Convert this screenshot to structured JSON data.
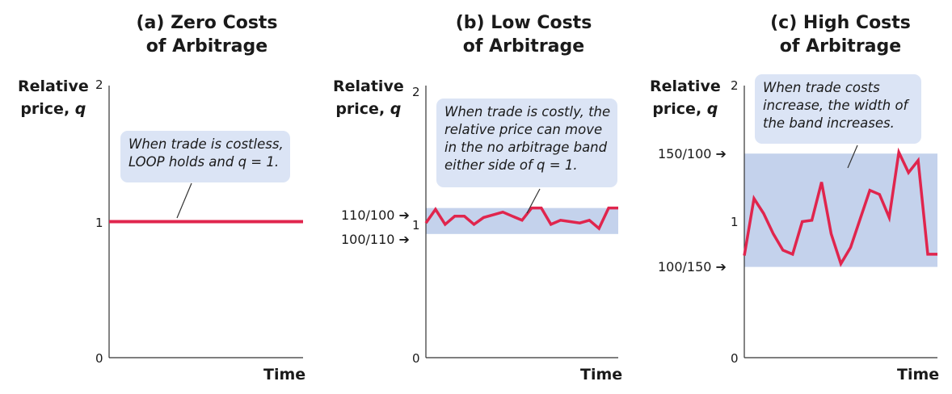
{
  "chart_data": [
    {
      "type": "line",
      "title": [
        "(a) Zero Costs",
        "of Arbitrage"
      ],
      "ylabel": "Relative price, q",
      "ylabel_lines": [
        "Relative",
        "price, "
      ],
      "ylabel_var": "q",
      "xlabel": "Time",
      "ylim": [
        0,
        2
      ],
      "yticks": [
        "2",
        "1",
        "0"
      ],
      "band": null,
      "series": [
        {
          "x": [
            0,
            20
          ],
          "values": [
            1,
            1
          ]
        }
      ],
      "annotation": [
        "When trade is costless,",
        "LOOP holds and q = 1."
      ],
      "line_color": "#e0254d",
      "band_color": "#c4d2ec"
    },
    {
      "type": "line",
      "title": [
        "(b) Low Costs",
        "of Arbitrage"
      ],
      "ylabel": "Relative price, q",
      "ylabel_lines": [
        "Relative",
        "price, "
      ],
      "ylabel_var": "q",
      "xlabel": "Time",
      "ylim": [
        0,
        2
      ],
      "yticks": [
        "2",
        "1",
        "0"
      ],
      "band": {
        "upper": 1.1,
        "lower": 0.909,
        "upper_label": "110/100",
        "lower_label": "100/110"
      },
      "series": [
        {
          "x": [
            0,
            1,
            2,
            3,
            4,
            5,
            6,
            7,
            8,
            9,
            10,
            11,
            12,
            13,
            14,
            15,
            16,
            17,
            18,
            19,
            20
          ],
          "values": [
            0.99,
            1.09,
            0.98,
            1.04,
            1.04,
            0.98,
            1.03,
            1.05,
            1.07,
            1.04,
            1.01,
            1.1,
            1.1,
            0.98,
            1.01,
            1.0,
            0.99,
            1.01,
            0.95,
            1.1,
            1.1
          ]
        }
      ],
      "annotation": [
        "When trade is costly, the",
        "relative price can move",
        "in the no arbitrage band",
        "either side of q = 1."
      ],
      "line_color": "#e0254d",
      "band_color": "#c4d2ec"
    },
    {
      "type": "line",
      "title": [
        "(c) High Costs",
        "of Arbitrage"
      ],
      "ylabel": "Relative price, q",
      "ylabel_lines": [
        "Relative",
        "price, "
      ],
      "ylabel_var": "q",
      "xlabel": "Time",
      "ylim": [
        0,
        2
      ],
      "yticks": [
        "2",
        "1",
        "0"
      ],
      "band": {
        "upper": 1.5,
        "lower": 0.667,
        "upper_label": "150/100",
        "lower_label": "100/150"
      },
      "series": [
        {
          "x": [
            0,
            1,
            2,
            3,
            4,
            5,
            6,
            7,
            8,
            9,
            10,
            11,
            12,
            13,
            14,
            15,
            16,
            17,
            18,
            19,
            20
          ],
          "values": [
            0.75,
            1.17,
            1.06,
            0.91,
            0.79,
            0.76,
            1.0,
            1.01,
            1.29,
            0.91,
            0.69,
            0.81,
            1.02,
            1.23,
            1.2,
            1.03,
            1.51,
            1.36,
            1.45,
            0.76,
            0.76
          ]
        }
      ],
      "annotation": [
        "When trade costs",
        "increase, the width of",
        "the band increases."
      ],
      "line_color": "#e0254d",
      "band_color": "#c4d2ec"
    }
  ]
}
